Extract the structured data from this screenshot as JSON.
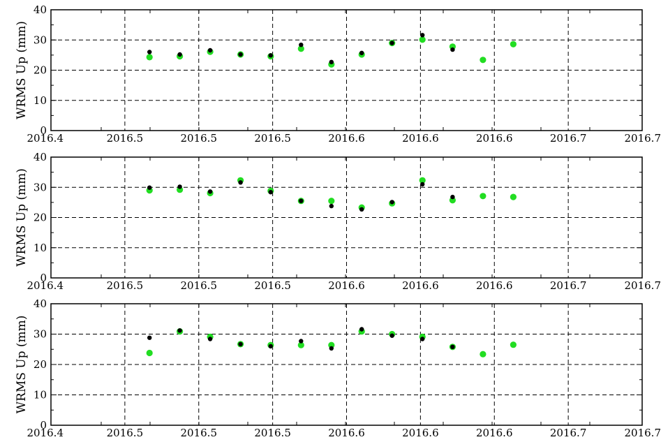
{
  "colors": {
    "series_black": "#000000",
    "series_green": "#22dd22",
    "axis": "#000000",
    "grid": "#000000"
  },
  "chart_data": [
    {
      "type": "scatter",
      "ylabel": "WRMS Up (mm)",
      "ylim": [
        0,
        40
      ],
      "xlim": [
        2016.4,
        2016.7
      ],
      "y_ticks": [
        0,
        10,
        20,
        30,
        40
      ],
      "x_tick_labels": [
        "2016.4",
        "2016.5",
        "2016.5",
        "2016.5",
        "2016.6",
        "2016.6",
        "2016.6",
        "2016.7",
        "2016.7"
      ],
      "grid": true,
      "series": [
        {
          "color": "#000000",
          "x": [
            2016.45,
            2016.4654,
            2016.4808,
            2016.4962,
            2016.5115,
            2016.5269,
            2016.5423,
            2016.5577,
            2016.5731,
            2016.5885,
            2016.6038
          ],
          "y": [
            26.0,
            25.2,
            26.6,
            25.2,
            24.9,
            28.4,
            22.7,
            25.7,
            29.0,
            31.6,
            26.8
          ]
        },
        {
          "color": "#22dd22",
          "x": [
            2016.45,
            2016.4654,
            2016.4808,
            2016.4962,
            2016.5115,
            2016.5269,
            2016.5423,
            2016.5577,
            2016.5731,
            2016.5885,
            2016.6038,
            2016.6192,
            2016.6346
          ],
          "y": [
            24.3,
            24.6,
            26.1,
            25.2,
            24.6,
            27.1,
            21.9,
            25.2,
            29.0,
            30.1,
            27.8,
            23.4,
            28.6
          ]
        }
      ]
    },
    {
      "type": "scatter",
      "ylabel": "WRMS Up (mm)",
      "ylim": [
        0,
        40
      ],
      "xlim": [
        2016.4,
        2016.7
      ],
      "y_ticks": [
        0,
        10,
        20,
        30,
        40
      ],
      "x_tick_labels": [
        "2016.4",
        "2016.5",
        "2016.5",
        "2016.5",
        "2016.6",
        "2016.6",
        "2016.6",
        "2016.7",
        "2016.7"
      ],
      "grid": true,
      "series": [
        {
          "color": "#000000",
          "x": [
            2016.45,
            2016.4654,
            2016.4808,
            2016.4962,
            2016.5115,
            2016.5269,
            2016.5423,
            2016.5577,
            2016.5731,
            2016.5885,
            2016.6038
          ],
          "y": [
            29.9,
            30.2,
            28.6,
            31.6,
            28.4,
            25.5,
            23.8,
            22.7,
            25.1,
            31.0,
            26.8
          ]
        },
        {
          "color": "#22dd22",
          "x": [
            2016.45,
            2016.4654,
            2016.4808,
            2016.4962,
            2016.5115,
            2016.5269,
            2016.5423,
            2016.5577,
            2016.5731,
            2016.5885,
            2016.6038,
            2016.6192,
            2016.6346
          ],
          "y": [
            29.0,
            29.2,
            28.1,
            32.3,
            28.8,
            25.5,
            25.5,
            23.3,
            24.7,
            32.3,
            25.7,
            27.1,
            26.8
          ]
        }
      ]
    },
    {
      "type": "scatter",
      "ylabel": "WRMS Up (mm)",
      "ylim": [
        0,
        40
      ],
      "xlim": [
        2016.4,
        2016.7
      ],
      "y_ticks": [
        0,
        10,
        20,
        30,
        40
      ],
      "x_tick_labels": [
        "2016.4",
        "2016.5",
        "2016.5",
        "2016.5",
        "2016.6",
        "2016.6",
        "2016.6",
        "2016.7",
        "2016.7"
      ],
      "grid": true,
      "series": [
        {
          "color": "#000000",
          "x": [
            2016.45,
            2016.4654,
            2016.4808,
            2016.4962,
            2016.5115,
            2016.5269,
            2016.5423,
            2016.5577,
            2016.5731,
            2016.5885,
            2016.6038
          ],
          "y": [
            28.8,
            31.2,
            28.4,
            26.7,
            26.0,
            27.7,
            25.3,
            31.6,
            29.5,
            28.4,
            25.8
          ]
        },
        {
          "color": "#22dd22",
          "x": [
            2016.45,
            2016.4654,
            2016.4808,
            2016.4962,
            2016.5115,
            2016.5269,
            2016.5423,
            2016.5577,
            2016.5731,
            2016.5885,
            2016.6038,
            2016.6192,
            2016.6346
          ],
          "y": [
            23.8,
            30.9,
            29.1,
            26.7,
            26.4,
            26.4,
            26.4,
            30.9,
            30.0,
            29.1,
            25.8,
            23.4,
            26.5
          ]
        }
      ]
    }
  ]
}
